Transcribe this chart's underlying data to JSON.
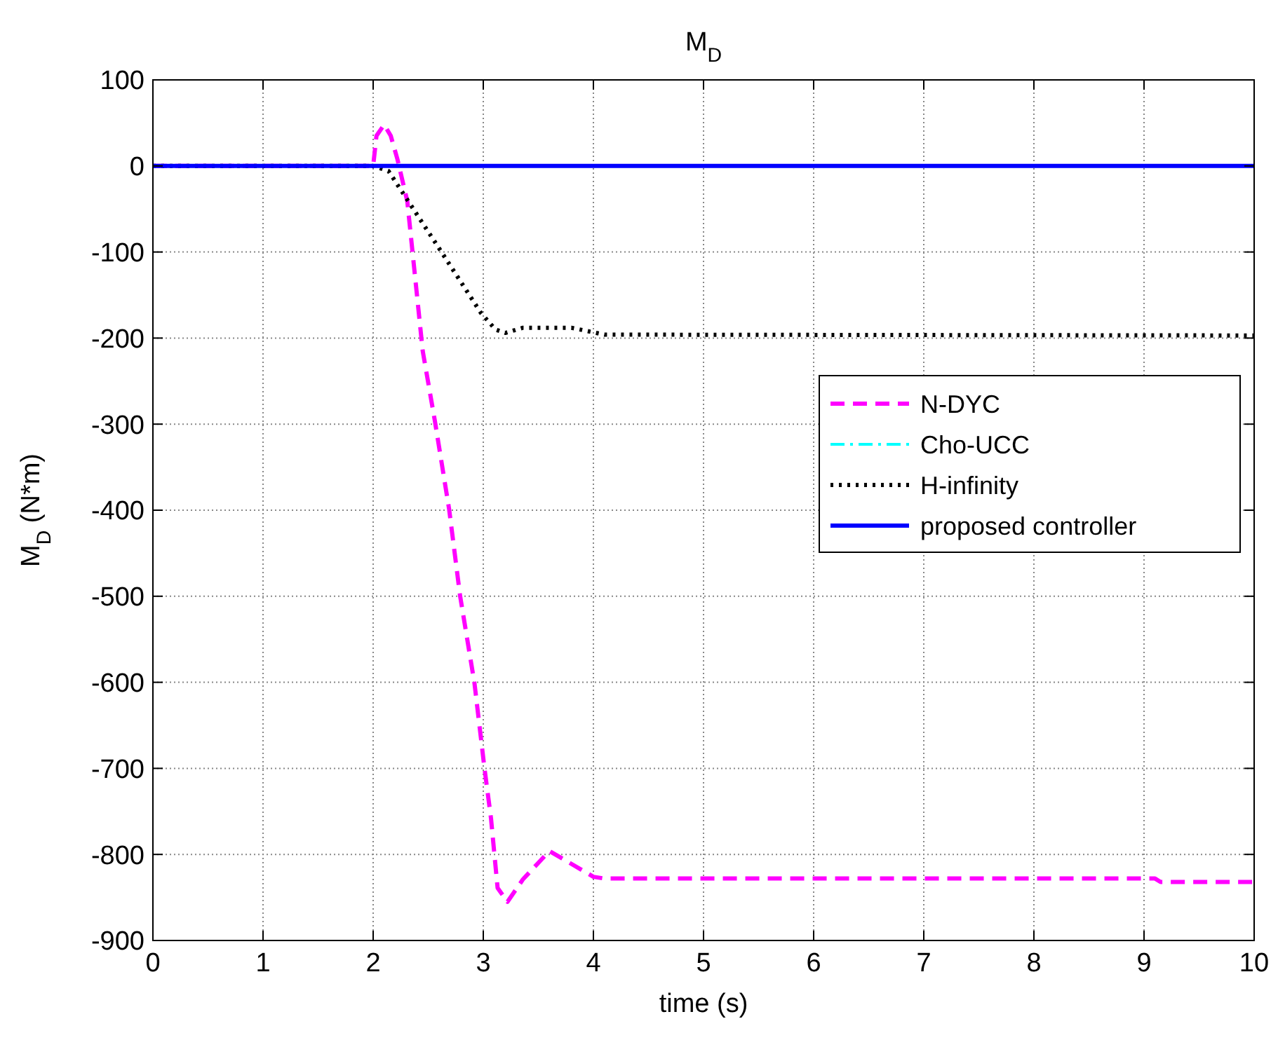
{
  "chart_data": {
    "type": "line",
    "title": "M$_{D}$",
    "xlabel": "time (s)",
    "ylabel": "M$_{D}$ (N*m)",
    "xlim": [
      0,
      10
    ],
    "ylim": [
      -900,
      100
    ],
    "xticks": [
      0,
      1,
      2,
      3,
      4,
      5,
      6,
      7,
      8,
      9,
      10
    ],
    "yticks": [
      -900,
      -800,
      -700,
      -600,
      -500,
      -400,
      -300,
      -200,
      -100,
      0,
      100
    ],
    "grid": true,
    "legend": "right",
    "series": [
      {
        "name": "N-DYC",
        "color": "#ff00ff",
        "line_style": "dashed",
        "x": [
          0,
          2.0,
          2.03,
          2.1,
          2.16,
          2.22,
          2.31,
          2.45,
          2.56,
          2.69,
          2.79,
          2.92,
          3.01,
          3.07,
          3.13,
          3.22,
          3.36,
          3.6,
          4.0,
          4.1,
          9.1,
          9.15,
          10
        ],
        "values": [
          0,
          0,
          35,
          48,
          35,
          8,
          -41,
          -215,
          -296,
          -399,
          -500,
          -601,
          -699,
          -758,
          -839,
          -855,
          -829,
          -796,
          -826,
          -828,
          -828,
          -832,
          -832
        ]
      },
      {
        "name": "Cho-UCC",
        "color": "#00ffff",
        "line_style": "dashdot"
      },
      {
        "name": "H-infinity",
        "color": "#000000",
        "line_style": "dotted",
        "x": [
          0,
          2.0,
          2.14,
          2.6,
          2.98,
          3.11,
          3.2,
          3.36,
          3.8,
          4.1,
          10
        ],
        "values": [
          0,
          0,
          -6,
          -96,
          -171,
          -190,
          -194,
          -188,
          -188,
          -196,
          -197
        ]
      },
      {
        "name": "proposed controller",
        "color": "#0000ff",
        "line_style": "solid",
        "x": [
          0,
          10
        ],
        "values": [
          0,
          0
        ]
      }
    ]
  }
}
